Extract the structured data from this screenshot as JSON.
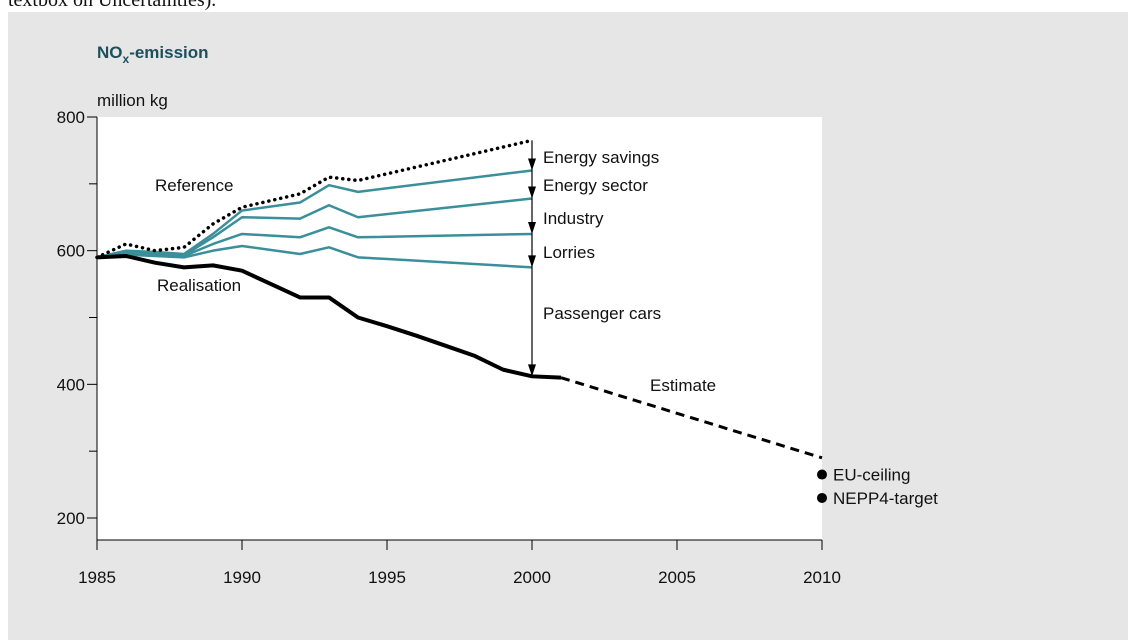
{
  "header": {
    "text": "textbox on Uncertainties)."
  },
  "chart_data": {
    "type": "line",
    "title_parts": [
      "NO",
      "x",
      "-emission"
    ],
    "y_label": "million kg",
    "xlim": [
      1985,
      2010
    ],
    "xticks": [
      1985,
      1990,
      1995,
      2000,
      2005,
      2010
    ],
    "ylim": [
      200,
      800
    ],
    "yticks": [
      200,
      400,
      600,
      800
    ],
    "yminor_ticks": [
      300,
      500,
      700
    ],
    "series": [
      {
        "name": "Reference",
        "color": "#000000",
        "style": "dotted",
        "x": [
          1985,
          1986,
          1987,
          1988,
          1989,
          1990,
          1991,
          1992,
          1993,
          1994,
          1995,
          1996,
          1997,
          1998,
          1999,
          2000
        ],
        "values": [
          590,
          610,
          600,
          605,
          640,
          665,
          675,
          685,
          710,
          705,
          715,
          725,
          735,
          745,
          755,
          765
        ]
      },
      {
        "color": "#3a8f9a",
        "style": "solid",
        "x": [
          1985,
          1986,
          1987,
          1988,
          1989,
          1990,
          1992,
          1993,
          1994,
          2000
        ],
        "values": [
          590,
          600,
          598,
          595,
          625,
          660,
          672,
          698,
          688,
          720
        ]
      },
      {
        "color": "#3a8f9a",
        "style": "solid",
        "x": [
          1985,
          1986,
          1987,
          1988,
          1989,
          1990,
          1992,
          1993,
          1994,
          2000
        ],
        "values": [
          590,
          598,
          596,
          593,
          620,
          650,
          648,
          668,
          650,
          678
        ]
      },
      {
        "color": "#3a8f9a",
        "style": "solid",
        "x": [
          1985,
          1986,
          1987,
          1988,
          1989,
          1990,
          1992,
          1993,
          1994,
          2000
        ],
        "values": [
          590,
          596,
          594,
          592,
          610,
          625,
          620,
          635,
          620,
          625
        ]
      },
      {
        "color": "#3a8f9a",
        "style": "solid",
        "x": [
          1985,
          1986,
          1987,
          1988,
          1989,
          1990,
          1992,
          1993,
          1994,
          2000
        ],
        "values": [
          590,
          594,
          592,
          590,
          600,
          607,
          595,
          605,
          590,
          575
        ]
      },
      {
        "name": "Realisation",
        "color": "#000000",
        "style": "thick",
        "x": [
          1985,
          1986,
          1987,
          1988,
          1989,
          1990,
          1991,
          1992,
          1993,
          1994,
          1995,
          1996,
          1997,
          1998,
          1999,
          2000,
          2001
        ],
        "values": [
          590,
          592,
          582,
          575,
          578,
          570,
          550,
          530,
          530,
          500,
          487,
          473,
          458,
          443,
          422,
          412,
          410
        ]
      },
      {
        "name": "Estimate",
        "color": "#000000",
        "style": "dashed",
        "x": [
          2001,
          2010
        ],
        "values": [
          410,
          290
        ]
      }
    ],
    "gap_labels": [
      "Energy savings",
      "Energy sector",
      "Industry",
      "Lorries",
      "Passenger cars"
    ],
    "points": [
      {
        "name": "EU-ceiling",
        "x": 2010,
        "value": 265
      },
      {
        "name": "NEPP4-target",
        "x": 2010,
        "value": 230
      }
    ]
  }
}
